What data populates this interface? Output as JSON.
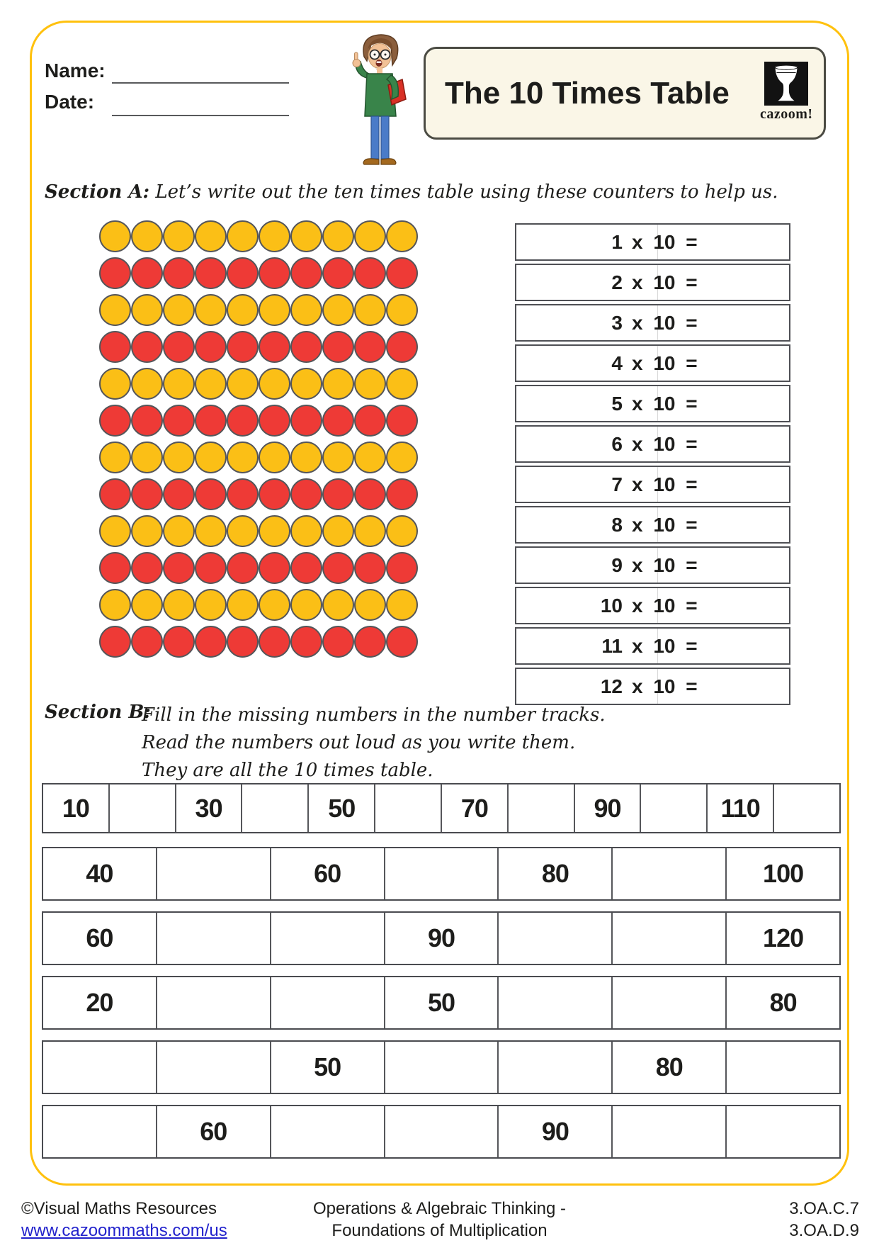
{
  "header": {
    "name_label": "Name:",
    "date_label": "Date:",
    "title": "The 10 Times Table",
    "logo_text": "cazoom!"
  },
  "section_a": {
    "heading": "Section A:",
    "instruction": "Let’s write out the ten times table using these counters to help us.",
    "counters": {
      "cols": 10,
      "pattern": [
        "yellow",
        "red",
        "yellow",
        "red",
        "yellow",
        "red",
        "yellow",
        "red",
        "yellow",
        "red",
        "yellow",
        "red"
      ],
      "colors": {
        "yellow": "#FBBF16",
        "red": "#EE3A36"
      }
    },
    "equation_suffix": "x 10 =",
    "equations": [
      "1",
      "2",
      "3",
      "4",
      "5",
      "6",
      "7",
      "8",
      "9",
      "10",
      "11",
      "12"
    ]
  },
  "section_b": {
    "heading": "Section B:",
    "instructions": [
      "Fill in the missing numbers in the number tracks.",
      "Read the numbers out loud as you write them.",
      "They are all the 10 times table."
    ],
    "tracks": [
      {
        "cells": [
          "10",
          "",
          "30",
          "",
          "50",
          "",
          "70",
          "",
          "90",
          "",
          "110",
          ""
        ]
      },
      {
        "cells": [
          "40",
          "",
          "60",
          "",
          "80",
          "",
          "100"
        ]
      },
      {
        "cells": [
          "60",
          "",
          "",
          "90",
          "",
          "",
          "120"
        ]
      },
      {
        "cells": [
          "20",
          "",
          "",
          "50",
          "",
          "",
          "80"
        ]
      },
      {
        "cells": [
          "",
          "",
          "50",
          "",
          "",
          "80",
          ""
        ]
      },
      {
        "cells": [
          "",
          "60",
          "",
          "",
          "90",
          "",
          ""
        ]
      }
    ]
  },
  "footer": {
    "copyright": "©Visual Maths Resources",
    "link": "www.cazoommaths.com/us",
    "topic_line1": "Operations & Algebraic Thinking -",
    "topic_line2": "Foundations of Multiplication",
    "standard_codes": [
      "3.OA.C.7",
      "3.OA.D.9"
    ]
  },
  "colors": {
    "frame_gold": "#FFC10E",
    "counter_yellow": "#FBBF16",
    "counter_red": "#EE3A36",
    "title_box_cream": "#FAF6E7",
    "link_blue": "#2222CC"
  }
}
